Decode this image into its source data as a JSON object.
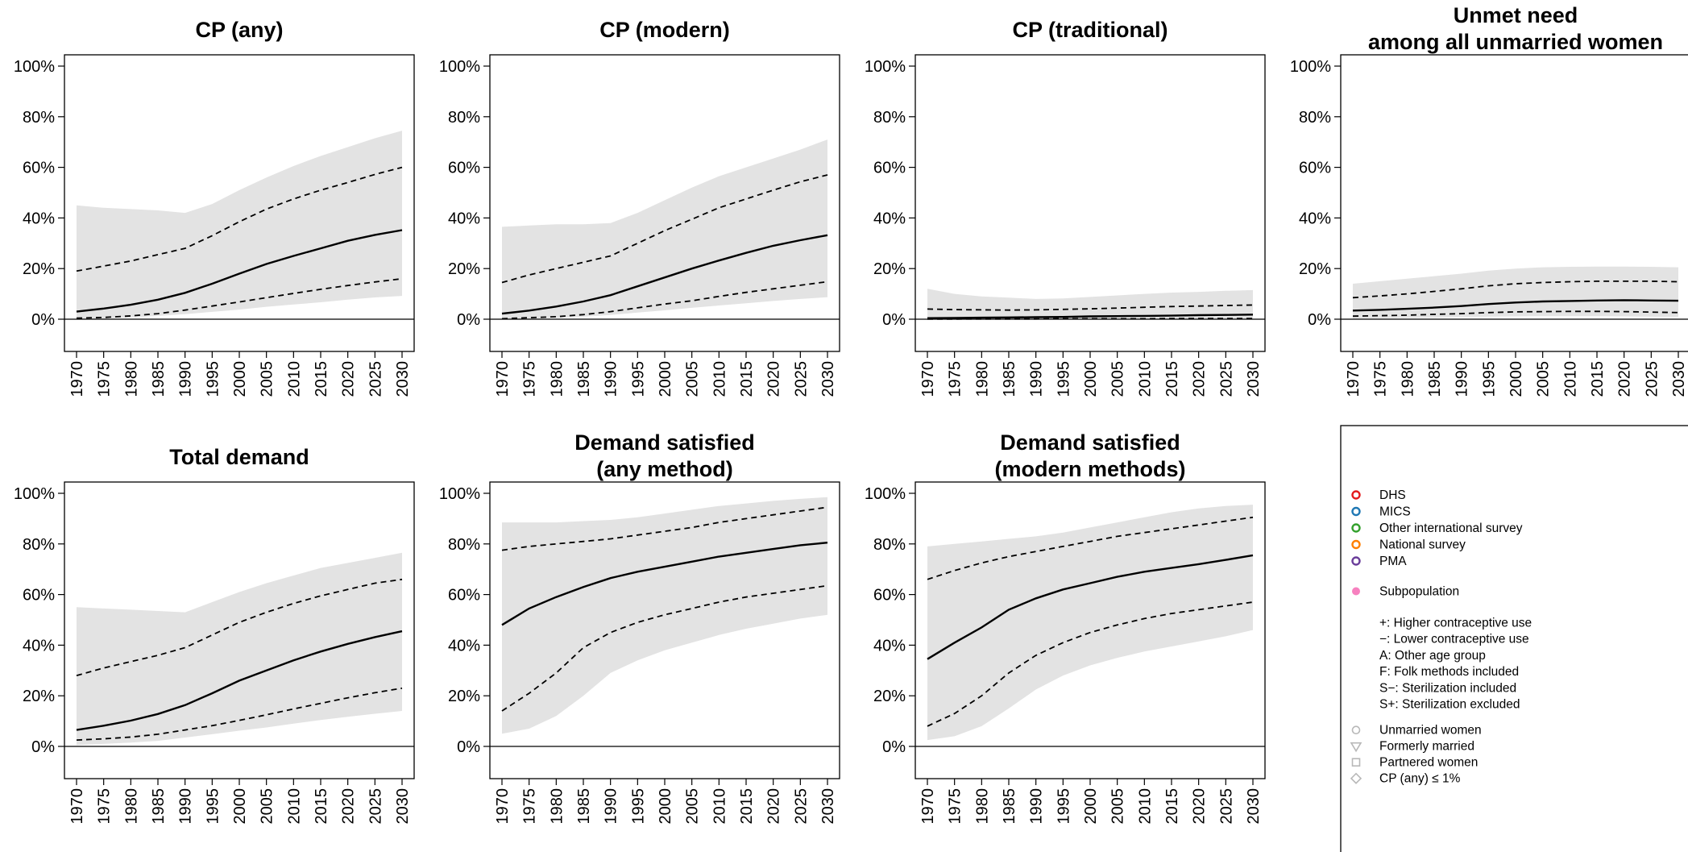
{
  "chart_data": [
    {
      "type": "line",
      "title": "CP (any)",
      "xlabel": "",
      "ylabel": "",
      "x": [
        1970,
        1975,
        1980,
        1985,
        1990,
        1995,
        2000,
        2005,
        2010,
        2015,
        2020,
        2025,
        2030
      ],
      "ylim": [
        0,
        1
      ],
      "y_ticks": [
        "0%",
        "20%",
        "40%",
        "60%",
        "80%",
        "100%"
      ],
      "x_ticks": [
        "1970",
        "1975",
        "1980",
        "1985",
        "1990",
        "1995",
        "2000",
        "2005",
        "2010",
        "2015",
        "2020",
        "2025",
        "2030"
      ],
      "series": [
        {
          "role": "median",
          "values": [
            0.03,
            0.042,
            0.057,
            0.077,
            0.104,
            0.14,
            0.18,
            0.218,
            0.25,
            0.28,
            0.31,
            0.333,
            0.352
          ]
        },
        {
          "role": "upper_80",
          "values": [
            0.19,
            0.21,
            0.23,
            0.255,
            0.28,
            0.33,
            0.385,
            0.435,
            0.475,
            0.51,
            0.54,
            0.572,
            0.6
          ]
        },
        {
          "role": "lower_80",
          "values": [
            0.004,
            0.007,
            0.013,
            0.022,
            0.036,
            0.052,
            0.068,
            0.085,
            0.102,
            0.118,
            0.133,
            0.147,
            0.16
          ]
        },
        {
          "role": "upper_95",
          "values": [
            0.45,
            0.44,
            0.435,
            0.43,
            0.42,
            0.455,
            0.51,
            0.56,
            0.605,
            0.645,
            0.68,
            0.715,
            0.745
          ]
        },
        {
          "role": "lower_95",
          "values": [
            0.001,
            0.003,
            0.007,
            0.013,
            0.02,
            0.029,
            0.038,
            0.049,
            0.058,
            0.067,
            0.077,
            0.086,
            0.092
          ]
        }
      ]
    },
    {
      "type": "line",
      "title": "CP (modern)",
      "xlabel": "",
      "ylabel": "",
      "x": [
        1970,
        1975,
        1980,
        1985,
        1990,
        1995,
        2000,
        2005,
        2010,
        2015,
        2020,
        2025,
        2030
      ],
      "ylim": [
        0,
        1
      ],
      "y_ticks": [
        "0%",
        "20%",
        "40%",
        "60%",
        "80%",
        "100%"
      ],
      "x_ticks": [
        "1970",
        "1975",
        "1980",
        "1985",
        "1990",
        "1995",
        "2000",
        "2005",
        "2010",
        "2015",
        "2020",
        "2025",
        "2030"
      ],
      "series": [
        {
          "role": "median",
          "values": [
            0.022,
            0.034,
            0.05,
            0.07,
            0.095,
            0.13,
            0.165,
            0.2,
            0.232,
            0.262,
            0.29,
            0.312,
            0.332
          ]
        },
        {
          "role": "upper_80",
          "values": [
            0.145,
            0.175,
            0.2,
            0.225,
            0.25,
            0.3,
            0.35,
            0.395,
            0.44,
            0.475,
            0.51,
            0.543,
            0.57
          ]
        },
        {
          "role": "lower_80",
          "values": [
            0.002,
            0.006,
            0.01,
            0.018,
            0.03,
            0.045,
            0.06,
            0.073,
            0.09,
            0.106,
            0.12,
            0.134,
            0.148
          ]
        },
        {
          "role": "upper_95",
          "values": [
            0.365,
            0.37,
            0.375,
            0.375,
            0.38,
            0.42,
            0.47,
            0.52,
            0.565,
            0.6,
            0.635,
            0.67,
            0.71
          ]
        },
        {
          "role": "lower_95",
          "values": [
            0.001,
            0.002,
            0.005,
            0.01,
            0.017,
            0.026,
            0.035,
            0.045,
            0.054,
            0.063,
            0.072,
            0.08,
            0.087
          ]
        }
      ]
    },
    {
      "type": "line",
      "title": "CP (traditional)",
      "xlabel": "",
      "ylabel": "",
      "x": [
        1970,
        1975,
        1980,
        1985,
        1990,
        1995,
        2000,
        2005,
        2010,
        2015,
        2020,
        2025,
        2030
      ],
      "ylim": [
        0,
        1
      ],
      "y_ticks": [
        "0%",
        "20%",
        "40%",
        "60%",
        "80%",
        "100%"
      ],
      "x_ticks": [
        "1970",
        "1975",
        "1980",
        "1985",
        "1990",
        "1995",
        "2000",
        "2005",
        "2010",
        "2015",
        "2020",
        "2025",
        "2030"
      ],
      "series": [
        {
          "role": "median",
          "values": [
            0.004,
            0.005,
            0.006,
            0.007,
            0.008,
            0.009,
            0.011,
            0.012,
            0.013,
            0.014,
            0.016,
            0.017,
            0.018
          ]
        },
        {
          "role": "upper_80",
          "values": [
            0.04,
            0.038,
            0.037,
            0.036,
            0.037,
            0.039,
            0.041,
            0.044,
            0.047,
            0.05,
            0.052,
            0.054,
            0.056
          ]
        },
        {
          "role": "lower_80",
          "values": [
            0.0005,
            0.0005,
            0.001,
            0.001,
            0.001,
            0.002,
            0.002,
            0.002,
            0.002,
            0.003,
            0.003,
            0.003,
            0.003
          ]
        },
        {
          "role": "upper_95",
          "values": [
            0.12,
            0.1,
            0.09,
            0.085,
            0.08,
            0.082,
            0.088,
            0.094,
            0.1,
            0.105,
            0.108,
            0.112,
            0.115
          ]
        },
        {
          "role": "lower_95",
          "values": [
            0.0,
            0.0,
            0.0,
            0.0,
            0.0,
            0.0,
            0.0,
            0.0,
            0.0,
            0.0,
            0.0,
            0.0,
            0.0
          ]
        }
      ]
    },
    {
      "type": "line",
      "title": "Unmet need\namong all unmarried women",
      "xlabel": "",
      "ylabel": "",
      "x": [
        1970,
        1975,
        1980,
        1985,
        1990,
        1995,
        2000,
        2005,
        2010,
        2015,
        2020,
        2025,
        2030
      ],
      "ylim": [
        0,
        1
      ],
      "y_ticks": [
        "0%",
        "20%",
        "40%",
        "60%",
        "80%",
        "100%"
      ],
      "x_ticks": [
        "1970",
        "1975",
        "1980",
        "1985",
        "1990",
        "1995",
        "2000",
        "2005",
        "2010",
        "2015",
        "2020",
        "2025",
        "2030"
      ],
      "series": [
        {
          "role": "median",
          "values": [
            0.034,
            0.037,
            0.041,
            0.046,
            0.052,
            0.06,
            0.066,
            0.07,
            0.072,
            0.074,
            0.075,
            0.074,
            0.073
          ]
        },
        {
          "role": "upper_80",
          "values": [
            0.085,
            0.092,
            0.1,
            0.11,
            0.12,
            0.132,
            0.14,
            0.145,
            0.148,
            0.15,
            0.15,
            0.15,
            0.148
          ]
        },
        {
          "role": "lower_80",
          "values": [
            0.012,
            0.014,
            0.016,
            0.019,
            0.022,
            0.026,
            0.029,
            0.03,
            0.031,
            0.031,
            0.03,
            0.028,
            0.026
          ]
        },
        {
          "role": "upper_95",
          "values": [
            0.14,
            0.15,
            0.16,
            0.17,
            0.18,
            0.192,
            0.2,
            0.205,
            0.207,
            0.208,
            0.208,
            0.207,
            0.205
          ]
        },
        {
          "role": "lower_95",
          "values": [
            0.003,
            0.004,
            0.005,
            0.006,
            0.008,
            0.01,
            0.011,
            0.012,
            0.012,
            0.012,
            0.011,
            0.01,
            0.009
          ]
        }
      ]
    },
    {
      "type": "line",
      "title": "Total demand",
      "xlabel": "",
      "ylabel": "",
      "x": [
        1970,
        1975,
        1980,
        1985,
        1990,
        1995,
        2000,
        2005,
        2010,
        2015,
        2020,
        2025,
        2030
      ],
      "ylim": [
        0,
        1
      ],
      "y_ticks": [
        "0%",
        "20%",
        "40%",
        "60%",
        "80%",
        "100%"
      ],
      "x_ticks": [
        "1970",
        "1975",
        "1980",
        "1985",
        "1990",
        "1995",
        "2000",
        "2005",
        "2010",
        "2015",
        "2020",
        "2025",
        "2030"
      ],
      "series": [
        {
          "role": "median",
          "values": [
            0.065,
            0.082,
            0.102,
            0.128,
            0.163,
            0.21,
            0.26,
            0.3,
            0.34,
            0.375,
            0.405,
            0.432,
            0.455
          ]
        },
        {
          "role": "upper_80",
          "values": [
            0.28,
            0.31,
            0.335,
            0.36,
            0.39,
            0.44,
            0.49,
            0.53,
            0.565,
            0.595,
            0.62,
            0.645,
            0.66
          ]
        },
        {
          "role": "lower_80",
          "values": [
            0.025,
            0.03,
            0.037,
            0.048,
            0.065,
            0.082,
            0.103,
            0.125,
            0.148,
            0.17,
            0.192,
            0.212,
            0.23
          ]
        },
        {
          "role": "upper_95",
          "values": [
            0.55,
            0.545,
            0.54,
            0.535,
            0.53,
            0.57,
            0.61,
            0.645,
            0.675,
            0.705,
            0.725,
            0.745,
            0.765
          ]
        },
        {
          "role": "lower_95",
          "values": [
            0.005,
            0.01,
            0.015,
            0.022,
            0.035,
            0.048,
            0.062,
            0.075,
            0.09,
            0.104,
            0.117,
            0.129,
            0.14
          ]
        }
      ]
    },
    {
      "type": "line",
      "title": "Demand satisfied\n(any method)",
      "xlabel": "",
      "ylabel": "",
      "x": [
        1970,
        1975,
        1980,
        1985,
        1990,
        1995,
        2000,
        2005,
        2010,
        2015,
        2020,
        2025,
        2030
      ],
      "ylim": [
        0,
        1
      ],
      "y_ticks": [
        "0%",
        "20%",
        "40%",
        "60%",
        "80%",
        "100%"
      ],
      "x_ticks": [
        "1970",
        "1975",
        "1980",
        "1985",
        "1990",
        "1995",
        "2000",
        "2005",
        "2010",
        "2015",
        "2020",
        "2025",
        "2030"
      ],
      "series": [
        {
          "role": "median",
          "values": [
            0.48,
            0.545,
            0.59,
            0.63,
            0.665,
            0.69,
            0.71,
            0.73,
            0.75,
            0.765,
            0.78,
            0.795,
            0.805
          ]
        },
        {
          "role": "upper_80",
          "values": [
            0.775,
            0.79,
            0.8,
            0.81,
            0.82,
            0.835,
            0.85,
            0.865,
            0.885,
            0.9,
            0.915,
            0.93,
            0.945
          ]
        },
        {
          "role": "lower_80",
          "values": [
            0.14,
            0.21,
            0.29,
            0.39,
            0.45,
            0.49,
            0.52,
            0.545,
            0.57,
            0.59,
            0.605,
            0.62,
            0.635
          ]
        },
        {
          "role": "upper_95",
          "values": [
            0.885,
            0.885,
            0.885,
            0.89,
            0.895,
            0.905,
            0.92,
            0.935,
            0.95,
            0.96,
            0.97,
            0.978,
            0.985
          ]
        },
        {
          "role": "lower_95",
          "values": [
            0.05,
            0.07,
            0.12,
            0.2,
            0.29,
            0.34,
            0.38,
            0.41,
            0.44,
            0.465,
            0.485,
            0.505,
            0.52
          ]
        }
      ]
    },
    {
      "type": "line",
      "title": "Demand satisfied\n(modern methods)",
      "xlabel": "",
      "ylabel": "",
      "x": [
        1970,
        1975,
        1980,
        1985,
        1990,
        1995,
        2000,
        2005,
        2010,
        2015,
        2020,
        2025,
        2030
      ],
      "ylim": [
        0,
        1
      ],
      "y_ticks": [
        "0%",
        "20%",
        "40%",
        "60%",
        "80%",
        "100%"
      ],
      "x_ticks": [
        "1970",
        "1975",
        "1980",
        "1985",
        "1990",
        "1995",
        "2000",
        "2005",
        "2010",
        "2015",
        "2020",
        "2025",
        "2030"
      ],
      "series": [
        {
          "role": "median",
          "values": [
            0.345,
            0.41,
            0.47,
            0.54,
            0.585,
            0.62,
            0.645,
            0.67,
            0.69,
            0.705,
            0.72,
            0.737,
            0.755
          ]
        },
        {
          "role": "upper_80",
          "values": [
            0.66,
            0.695,
            0.725,
            0.75,
            0.77,
            0.79,
            0.81,
            0.83,
            0.845,
            0.86,
            0.875,
            0.89,
            0.905
          ]
        },
        {
          "role": "lower_80",
          "values": [
            0.08,
            0.13,
            0.2,
            0.29,
            0.36,
            0.41,
            0.45,
            0.48,
            0.505,
            0.525,
            0.54,
            0.555,
            0.57
          ]
        },
        {
          "role": "upper_95",
          "values": [
            0.79,
            0.8,
            0.81,
            0.82,
            0.83,
            0.845,
            0.865,
            0.885,
            0.905,
            0.925,
            0.94,
            0.95,
            0.955
          ]
        },
        {
          "role": "lower_95",
          "values": [
            0.025,
            0.04,
            0.08,
            0.15,
            0.225,
            0.28,
            0.32,
            0.35,
            0.375,
            0.395,
            0.415,
            0.435,
            0.46
          ]
        }
      ]
    }
  ],
  "style": {
    "band_color": "#e3e3e3",
    "line_color": "#000000",
    "axis_color": "#000000"
  },
  "legend": {
    "sources": [
      {
        "label": "DHS",
        "color": "#e31a1c"
      },
      {
        "label": "MICS",
        "color": "#1f78b4"
      },
      {
        "label": "Other international survey",
        "color": "#33a02c"
      },
      {
        "label": "National survey",
        "color": "#ff7f00"
      },
      {
        "label": "PMA",
        "color": "#6a3d9a"
      }
    ],
    "subpopulation": {
      "label": "Subpopulation",
      "color": "#f781bf"
    },
    "codes": [
      "+:  Higher contraceptive use",
      "−:  Lower contraceptive use",
      "A:  Other age group",
      "F:  Folk methods included",
      "S−: Sterilization included",
      "S+: Sterilization excluded"
    ],
    "groups": [
      {
        "label": "Unmarried women",
        "icon": "circle-icon"
      },
      {
        "label": "Formerly married",
        "icon": "triangle-down-icon"
      },
      {
        "label": "Partnered women",
        "icon": "square-icon"
      },
      {
        "label": "CP (any)  ≤ 1%",
        "icon": "diamond-icon"
      }
    ],
    "marker_color": "#b8b8b8"
  }
}
